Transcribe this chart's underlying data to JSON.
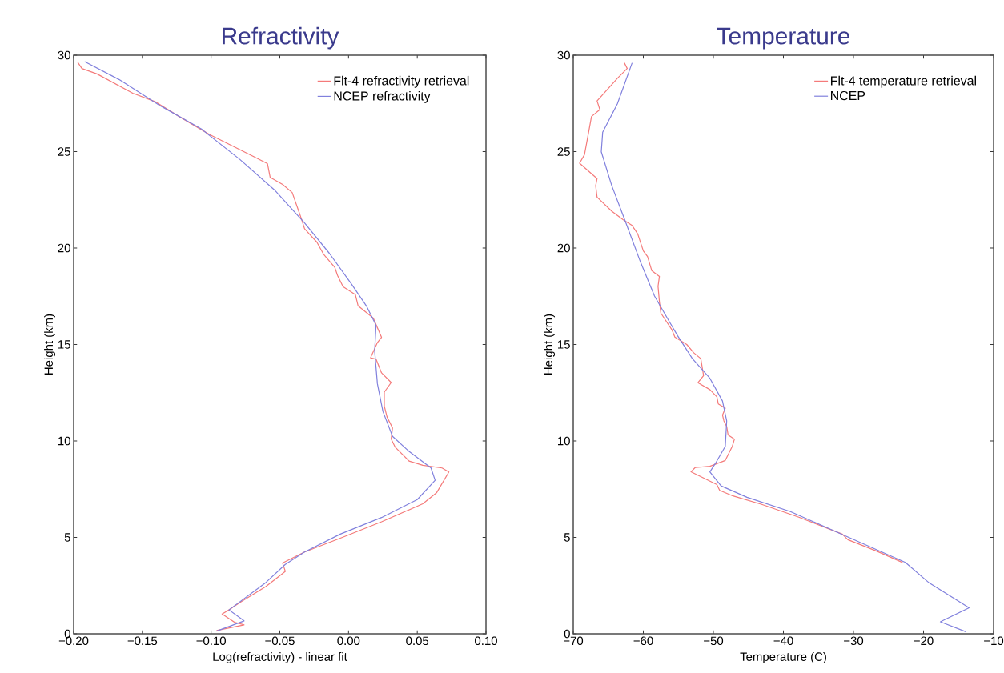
{
  "chart_data": [
    {
      "type": "line",
      "title": "Refractivity",
      "xlabel": "Log(refractivity) - linear fit",
      "ylabel": "Height (km)",
      "xlim": [
        -0.2,
        0.1
      ],
      "ylim": [
        0,
        30
      ],
      "xticks": [
        {
          "value": -0.2,
          "label": "−0.20"
        },
        {
          "value": -0.15,
          "label": "−0.15"
        },
        {
          "value": -0.1,
          "label": "−0.10"
        },
        {
          "value": -0.05,
          "label": "−0.05"
        },
        {
          "value": 0,
          "label": "0.00"
        },
        {
          "value": 0.05,
          "label": "0.05"
        },
        {
          "value": 0.1,
          "label": "0.10"
        }
      ],
      "yticks": [
        0,
        5,
        10,
        15,
        20,
        25,
        30
      ],
      "legend": "top right",
      "grid": false,
      "marker": "none",
      "line_style": "solid",
      "series": [
        {
          "name": "Flt-4 refractivity retrieval",
          "color": "#f47a7a",
          "x": [
            -0.096,
            -0.076,
            -0.083,
            -0.092,
            -0.087,
            -0.078,
            -0.06,
            -0.046,
            -0.048,
            -0.032,
            -0.006,
            0.024,
            0.054,
            0.064,
            0.073,
            0.068,
            0.054,
            0.044,
            0.034,
            0.031,
            0.032,
            0.028,
            0.026,
            0.026,
            0.031,
            0.024,
            0.02,
            0.016,
            0.021,
            0.024,
            0.018,
            0.007,
            0.005,
            -0.004,
            -0.008,
            -0.01,
            -0.018,
            -0.023,
            -0.032,
            -0.034,
            -0.041,
            -0.048,
            -0.057,
            -0.059,
            -0.069,
            -0.087,
            -0.101,
            -0.123,
            -0.141,
            -0.157,
            -0.183,
            -0.194,
            -0.197
          ],
          "values": [
            0.17,
            0.46,
            0.6,
            1.03,
            1.24,
            1.67,
            2.46,
            3.24,
            3.67,
            4.24,
            4.96,
            5.81,
            6.74,
            7.31,
            8.39,
            8.6,
            8.74,
            8.96,
            9.67,
            10.1,
            10.67,
            11.24,
            11.81,
            12.53,
            13.03,
            13.53,
            14.24,
            14.31,
            15.1,
            15.37,
            16.37,
            17.0,
            17.58,
            18.0,
            18.58,
            19.0,
            19.66,
            20.3,
            21.0,
            21.45,
            22.88,
            23.3,
            23.66,
            24.38,
            24.74,
            25.38,
            25.88,
            26.81,
            27.6,
            28.03,
            29.03,
            29.31,
            29.63
          ]
        },
        {
          "name": "NCEP refractivity",
          "color": "#8080dd",
          "x": [
            -0.096,
            -0.076,
            -0.087,
            -0.06,
            -0.046,
            -0.032,
            -0.006,
            0.024,
            0.05,
            0.063,
            0.06,
            0.044,
            0.032,
            0.025,
            0.021,
            0.019,
            0.02,
            0.013,
            0.002,
            -0.014,
            -0.032,
            -0.054,
            -0.079,
            -0.107,
            -0.137,
            -0.167,
            -0.192
          ],
          "values": [
            0.14,
            0.67,
            1.24,
            2.67,
            3.6,
            4.24,
            5.17,
            6.03,
            6.96,
            7.96,
            8.6,
            9.46,
            10.24,
            11.53,
            12.96,
            14.67,
            16.0,
            17.0,
            18.15,
            19.73,
            21.3,
            23.02,
            24.59,
            26.17,
            27.38,
            28.74,
            29.67
          ]
        }
      ]
    },
    {
      "type": "line",
      "title": "Temperature",
      "xlabel": "Temperature (C)",
      "ylabel": "Height (km)",
      "xlim": [
        -70,
        -10
      ],
      "ylim": [
        0,
        30
      ],
      "xticks": [
        {
          "value": -70,
          "label": "−70"
        },
        {
          "value": -60,
          "label": "−60"
        },
        {
          "value": -50,
          "label": "−50"
        },
        {
          "value": -40,
          "label": "−40"
        },
        {
          "value": -30,
          "label": "−30"
        },
        {
          "value": -20,
          "label": "−20"
        },
        {
          "value": -10,
          "label": "−10"
        }
      ],
      "yticks": [
        0,
        5,
        10,
        15,
        20,
        25,
        30
      ],
      "legend": "top right",
      "grid": false,
      "marker": "none",
      "line_style": "solid",
      "series": [
        {
          "name": "Flt-4 temperature retrieval",
          "color": "#f47a7a",
          "x": [
            -23.0,
            -26.7,
            -30.8,
            -31.6,
            -37.8,
            -43.1,
            -47.2,
            -49.1,
            -49.5,
            -53.2,
            -52.6,
            -50.5,
            -48.3,
            -47.7,
            -47.3,
            -47.0,
            -47.9,
            -48.1,
            -48.5,
            -48.7,
            -48.3,
            -49.3,
            -49.5,
            -50.5,
            -52.2,
            -51.4,
            -51.8,
            -52.8,
            -53.8,
            -55.5,
            -55.9,
            -57.5,
            -57.7,
            -57.9,
            -57.7,
            -58.8,
            -59.4,
            -60.0,
            -60.8,
            -61.6,
            -62.9,
            -64.5,
            -66.6,
            -66.8,
            -66.6,
            -69.1,
            -68.4,
            -67.8,
            -67.4,
            -66.2,
            -66.6,
            -63.7,
            -62.3,
            -62.7
          ],
          "values": [
            3.7,
            4.29,
            4.88,
            5.17,
            6.05,
            6.71,
            7.15,
            7.44,
            7.74,
            8.4,
            8.62,
            8.69,
            8.99,
            9.43,
            9.72,
            10.09,
            10.31,
            10.75,
            11.04,
            11.34,
            11.7,
            11.92,
            12.29,
            12.66,
            13.02,
            13.39,
            14.27,
            14.57,
            15.0,
            15.38,
            15.75,
            16.63,
            17.21,
            18.02,
            18.53,
            18.83,
            19.56,
            19.85,
            20.73,
            21.17,
            21.47,
            21.91,
            22.64,
            23.23,
            23.6,
            24.4,
            24.84,
            26.01,
            26.82,
            27.18,
            27.63,
            28.8,
            29.31,
            29.6
          ]
        },
        {
          "name": "NCEP",
          "color": "#8080dd",
          "x": [
            -13.9,
            -17.6,
            -13.5,
            -19.3,
            -22.6,
            -30.8,
            -39.0,
            -45.2,
            -48.9,
            -50.5,
            -49.7,
            -48.3,
            -48.1,
            -48.7,
            -50.5,
            -53.0,
            -55.1,
            -56.3,
            -58.4,
            -60.4,
            -62.5,
            -64.5,
            -66.0,
            -65.8,
            -63.7,
            -61.6
          ],
          "values": [
            0.1,
            0.62,
            1.35,
            2.67,
            3.7,
            5.02,
            6.34,
            7.08,
            7.67,
            8.4,
            8.84,
            9.72,
            11.04,
            12.07,
            13.25,
            14.27,
            15.45,
            16.19,
            17.51,
            19.27,
            21.32,
            23.23,
            24.99,
            26.01,
            27.48,
            29.6
          ]
        }
      ]
    }
  ]
}
